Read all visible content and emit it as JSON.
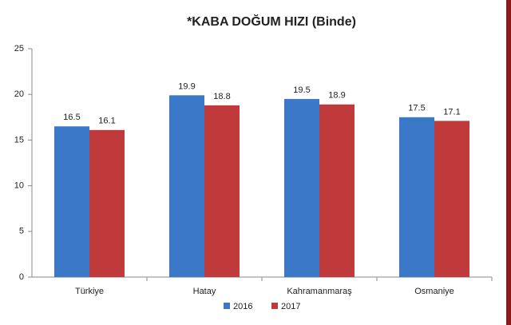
{
  "chart_data": {
    "type": "bar",
    "title": "*KABA DOĞUM HIZI (Binde)",
    "categories": [
      "Türkiye",
      "Hatay",
      "Kahramanmaraş",
      "Osmaniye"
    ],
    "series": [
      {
        "name": "2016",
        "color": "#3b78c8",
        "values": [
          16.5,
          19.9,
          19.5,
          17.5
        ]
      },
      {
        "name": "2017",
        "color": "#c0393b",
        "values": [
          16.1,
          18.8,
          18.9,
          17.1
        ]
      }
    ],
    "ylim": [
      0,
      25
    ],
    "yticks": [
      0,
      5,
      10,
      15,
      20,
      25
    ],
    "grid": false,
    "legend": "bottom"
  }
}
